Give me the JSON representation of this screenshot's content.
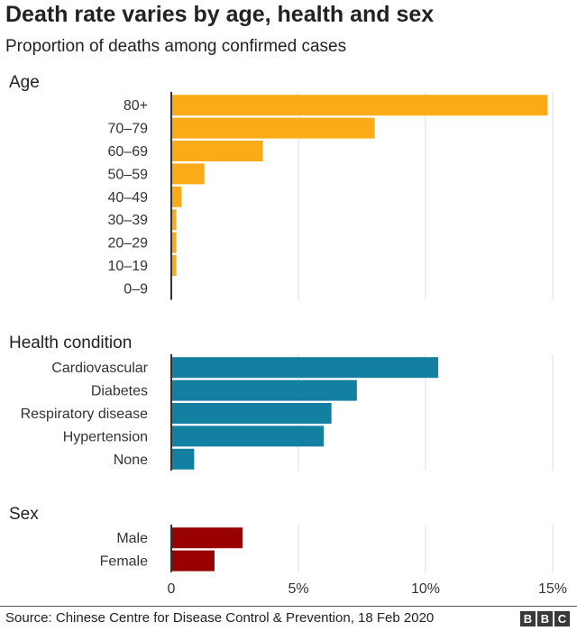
{
  "title": "Death rate varies by age, health and sex",
  "subtitle": "Proportion of deaths among confirmed cases",
  "source": "Source: Chinese Centre for Disease Control & Prevention, 18 Feb 2020",
  "logo": [
    "B",
    "B",
    "C"
  ],
  "chart_data": {
    "type": "bar",
    "orientation": "horizontal",
    "xlim": [
      0,
      15
    ],
    "xticks": [
      "0",
      "5%",
      "10%",
      "15%"
    ],
    "xtick_values": [
      0,
      5,
      10,
      15
    ],
    "grid": true,
    "panels": [
      {
        "title": "Age",
        "color": "#fbab18",
        "categories": [
          "80+",
          "70–79",
          "60–69",
          "50–59",
          "40–49",
          "30–39",
          "20–29",
          "10–19",
          "0–9"
        ],
        "values": [
          14.8,
          8.0,
          3.6,
          1.3,
          0.4,
          0.2,
          0.2,
          0.2,
          0
        ]
      },
      {
        "title": "Health condition",
        "color": "#1380a1",
        "categories": [
          "Cardiovascular",
          "Diabetes",
          "Respiratory disease",
          "Hypertension",
          "None"
        ],
        "values": [
          10.5,
          7.3,
          6.3,
          6.0,
          0.9
        ]
      },
      {
        "title": "Sex",
        "color": "#990000",
        "categories": [
          "Male",
          "Female"
        ],
        "values": [
          2.8,
          1.7
        ]
      }
    ]
  }
}
